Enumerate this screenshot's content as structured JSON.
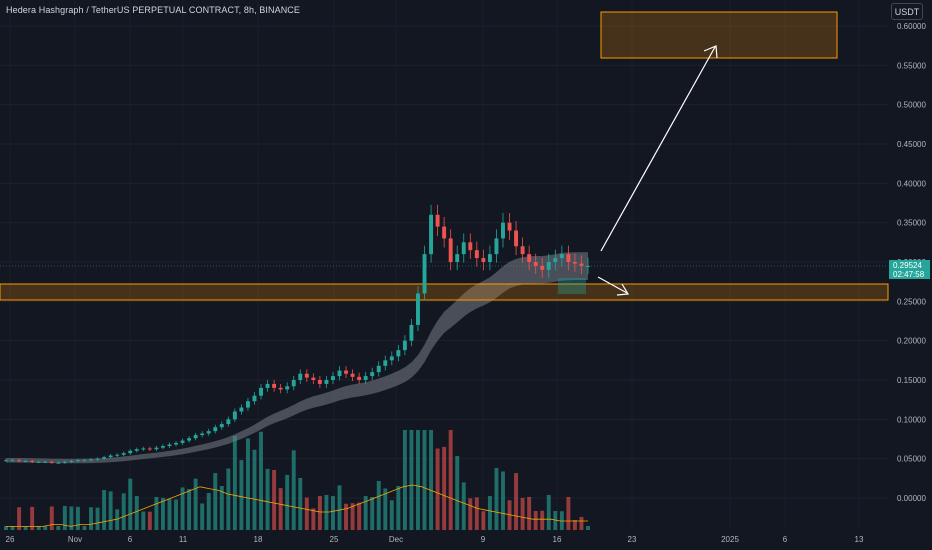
{
  "header": {
    "symbol_title": "Hedera Hashgraph / TetherUS PERPETUAL CONTRACT, 8h, BINANCE",
    "currency_button": "USDT"
  },
  "last_price": {
    "value": "0.29524",
    "countdown": "02:47:58"
  },
  "colors": {
    "background": "#131722",
    "up": "#26a69a",
    "down": "#ef5350",
    "zone": "#ff9800",
    "ribbon": "#787b86",
    "vol_ma": "#f7a600"
  },
  "chart_data": {
    "type": "candlestick",
    "timeframe": "8h",
    "y_axis": {
      "min": 0.0,
      "max": 0.6,
      "ticks": [
        "0.60000",
        "0.55000",
        "0.50000",
        "0.45000",
        "0.40000",
        "0.35000",
        "0.30000",
        "0.25000",
        "0.20000",
        "0.15000",
        "0.10000",
        "0.05000",
        "0.00000"
      ]
    },
    "x_axis": {
      "tick_labels": [
        "26",
        "Nov",
        "6",
        "11",
        "18",
        "25",
        "Dec",
        "9",
        "16",
        "23",
        "2025",
        "6",
        "13"
      ]
    },
    "price_closes": [
      0.048,
      0.048,
      0.047,
      0.047,
      0.046,
      0.046,
      0.046,
      0.045,
      0.045,
      0.046,
      0.047,
      0.048,
      0.048,
      0.049,
      0.05,
      0.052,
      0.054,
      0.055,
      0.057,
      0.06,
      0.062,
      0.063,
      0.062,
      0.064,
      0.066,
      0.068,
      0.07,
      0.073,
      0.076,
      0.08,
      0.082,
      0.085,
      0.09,
      0.094,
      0.1,
      0.11,
      0.115,
      0.123,
      0.13,
      0.14,
      0.145,
      0.14,
      0.138,
      0.142,
      0.15,
      0.158,
      0.153,
      0.15,
      0.145,
      0.15,
      0.155,
      0.162,
      0.158,
      0.154,
      0.15,
      0.155,
      0.16,
      0.168,
      0.175,
      0.18,
      0.188,
      0.2,
      0.22,
      0.26,
      0.31,
      0.36,
      0.345,
      0.33,
      0.3,
      0.31,
      0.325,
      0.315,
      0.305,
      0.3,
      0.31,
      0.33,
      0.35,
      0.34,
      0.32,
      0.31,
      0.3,
      0.295,
      0.29,
      0.3,
      0.305,
      0.31,
      0.3,
      0.298,
      0.295,
      0.295
    ],
    "volume_ma": [
      2,
      2,
      2,
      2,
      2,
      3,
      3,
      2,
      3,
      3,
      4,
      5,
      6,
      8,
      10,
      12,
      14,
      16,
      18,
      20,
      22,
      24,
      23,
      22,
      20,
      19,
      18,
      17,
      16,
      15,
      14,
      13,
      12,
      11,
      10,
      10,
      11,
      12,
      14,
      16,
      18,
      20,
      22,
      24,
      25,
      24,
      22,
      20,
      18,
      16,
      14,
      12,
      11,
      10,
      9,
      8,
      7,
      6,
      6,
      6,
      5,
      5,
      5,
      5
    ],
    "annotations": {
      "support_zone": [
        0.255,
        0.275
      ],
      "target_zone": [
        0.555,
        0.61
      ],
      "last_price_line": 0.29524
    }
  }
}
